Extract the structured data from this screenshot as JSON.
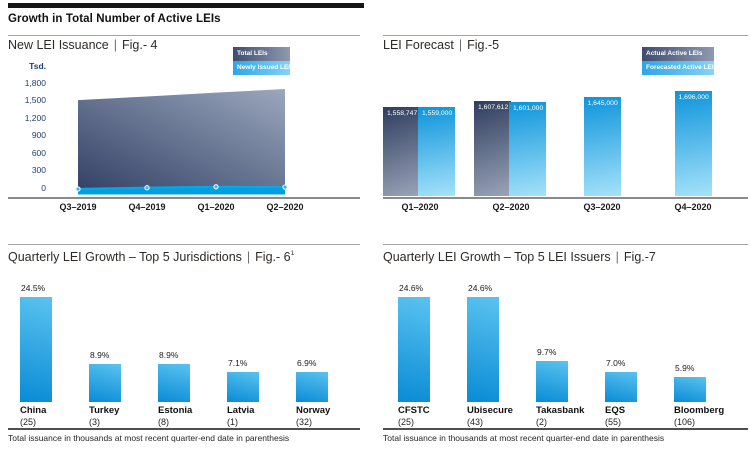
{
  "page": {
    "title": "Growth in Total Number of Active LEIs",
    "separator": "|",
    "footnote": "Total issuance in thousands at most recent quarter-end date in parenthesis"
  },
  "colors": {
    "bright_blue": "#009fdf",
    "navy_text": "#21406e",
    "dark_series_start": "#2e3d5e",
    "dark_series_end": "#9aa4b8",
    "light_series_start": "#0d94db",
    "light_series_end": "#a5e2fa"
  },
  "chart_data": [
    {
      "type": "area",
      "title": "New LEI Issuance",
      "fig_label": "Fig.- 4",
      "y_axis_unit": "Tsd.",
      "y_ticks": [
        "1,800",
        "1,500",
        "1,200",
        "900",
        "600",
        "300",
        "0"
      ],
      "ylim": [
        0,
        1800
      ],
      "units": "thousands",
      "legend_position": "top-right",
      "x": [
        "Q3–2019",
        "Q4–2019",
        "Q1–2020",
        "Q2–2020"
      ],
      "series": [
        {
          "name": "Total LEIs",
          "values": [
            1515,
            1575,
            1640,
            1700
          ]
        },
        {
          "name": "Newly Issued LEIs",
          "values": [
            33,
            55,
            70,
            65
          ]
        }
      ]
    },
    {
      "type": "bar",
      "title": "LEI Forecast",
      "fig_label": "Fig.-5",
      "legend_position": "top-right",
      "x": [
        "Q1–2020",
        "Q2–2020",
        "Q3–2020",
        "Q4–2020"
      ],
      "value_axis": {
        "display_min": 800000,
        "display_max": 1696000
      },
      "series": [
        {
          "name": "Actual Active LEIs",
          "values": [
            1558747,
            1607612,
            null,
            null
          ],
          "labels": [
            "1,558,747",
            "1,607,612",
            null,
            null
          ]
        },
        {
          "name": "Forecasted Active LEIs",
          "values": [
            1559000,
            1601000,
            1645000,
            1696000
          ],
          "labels": [
            "1,559,000",
            "1,601,000",
            "1,645,000",
            "1,696,000"
          ]
        }
      ]
    },
    {
      "type": "bar",
      "title": "Quarterly LEI Growth – Top 5 Jurisdictions",
      "fig_label": "Fig.- 6",
      "fig_superscript": "1",
      "ylim": [
        0,
        25
      ],
      "categories": [
        "China",
        "Turkey",
        "Estonia",
        "Latvia",
        "Norway"
      ],
      "category_sublabels": [
        "(25)",
        "(3)",
        "(8)",
        "(1)",
        "(32)"
      ],
      "values": [
        24.5,
        8.9,
        8.9,
        7.1,
        6.9
      ],
      "value_labels": [
        "24.5%",
        "8.9%",
        "8.9%",
        "7.1%",
        "6.9%"
      ]
    },
    {
      "type": "bar",
      "title": "Quarterly LEI Growth – Top 5 LEI Issuers",
      "fig_label": "Fig.-7",
      "ylim": [
        0,
        25
      ],
      "categories": [
        "CFSTC",
        "Ubisecure",
        "Takasbank",
        "EQS",
        "Bloomberg"
      ],
      "category_sublabels": [
        "(25)",
        "(43)",
        "(2)",
        "(55)",
        "(106)"
      ],
      "values": [
        24.6,
        24.6,
        9.7,
        7.0,
        5.9
      ],
      "value_labels": [
        "24.6%",
        "24.6%",
        "9.7%",
        "7.0%",
        "5.9%"
      ]
    }
  ]
}
